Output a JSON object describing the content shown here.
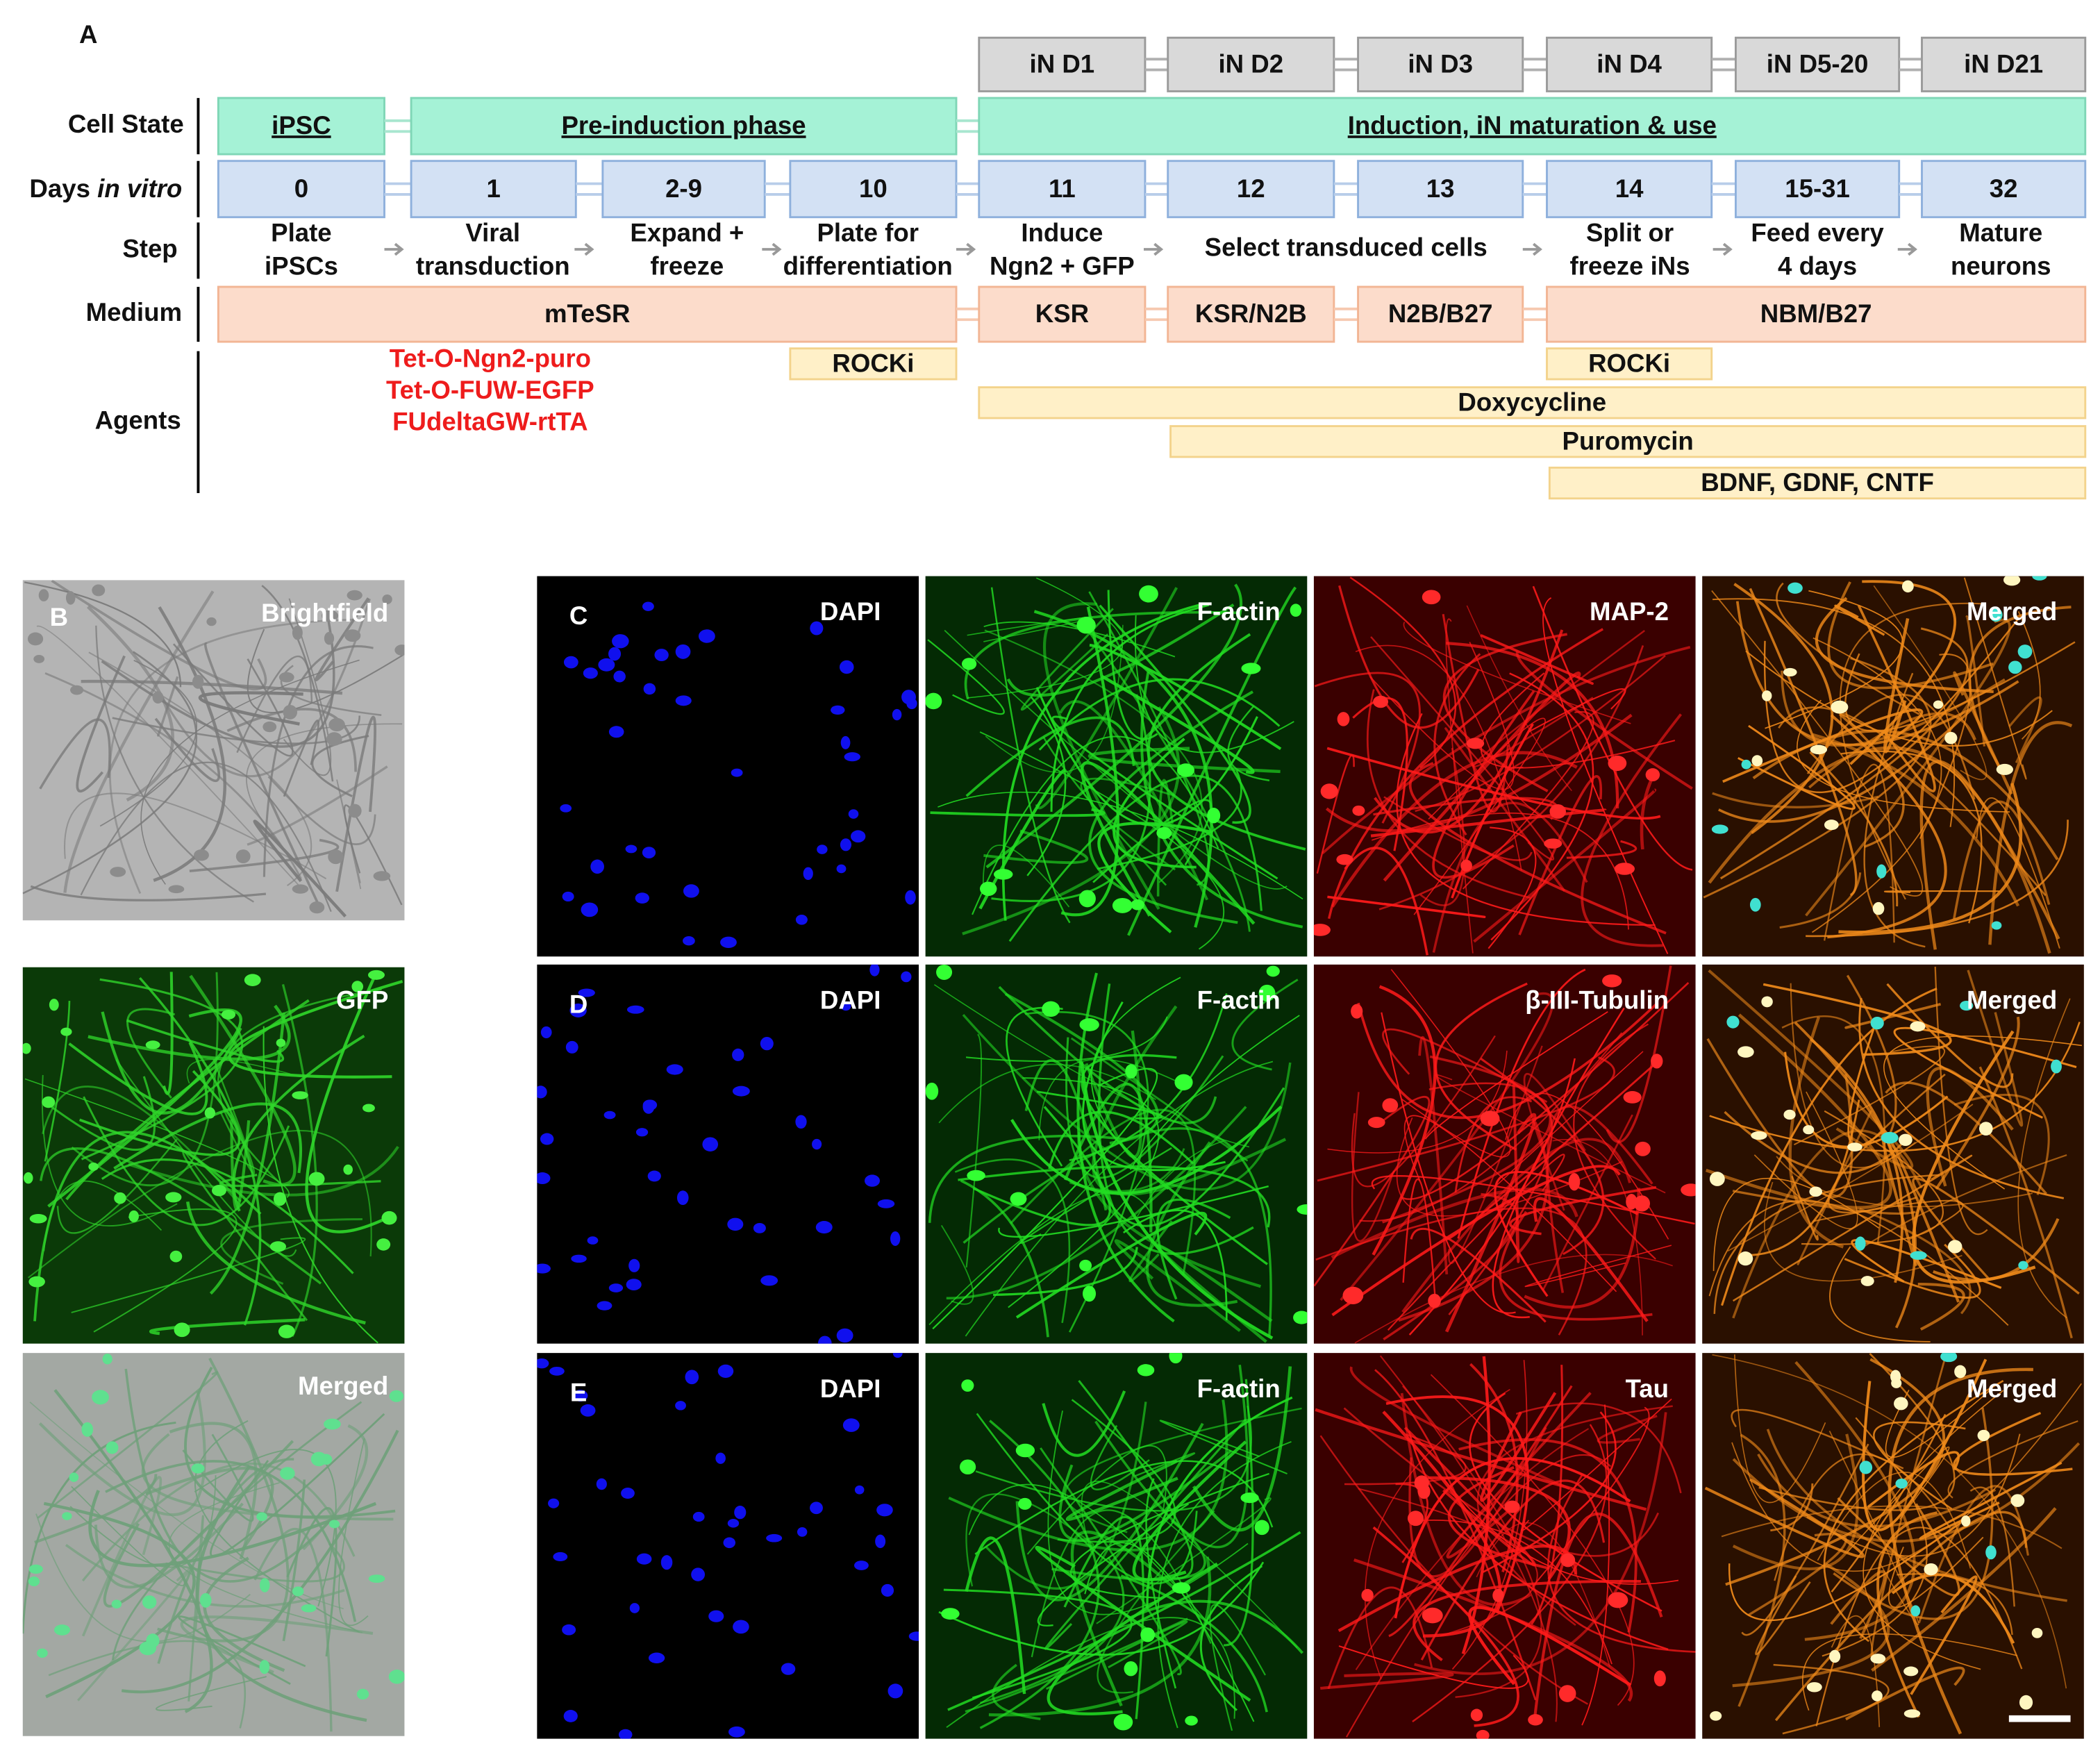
{
  "panel_a": {
    "label": "A",
    "row_labels": {
      "cell_state": "Cell State",
      "days": [
        "Days",
        "in vitro"
      ],
      "step": "Step",
      "medium": "Medium",
      "agents": "Agents"
    },
    "in_days": [
      "iN D1",
      "iN D2",
      "iN D3",
      "iN D4",
      "iN D5-20",
      "iN D21"
    ],
    "cell_states": [
      "iPSC",
      "Pre-induction phase",
      "Induction, iN maturation & use"
    ],
    "days": [
      "0",
      "1",
      "2-9",
      "10",
      "11",
      "12",
      "13",
      "14",
      "15-31",
      "32"
    ],
    "steps": [
      [
        "Plate",
        "iPSCs"
      ],
      [
        "Viral",
        "transduction"
      ],
      [
        "Expand +",
        "freeze"
      ],
      [
        "Plate for",
        "differentiation"
      ],
      [
        "Induce",
        "Ngn2 + GFP"
      ],
      [
        "Select transduced cells"
      ],
      [
        "Split or",
        "freeze iNs"
      ],
      [
        "Feed every",
        "4 days"
      ],
      [
        "Mature",
        "neurons"
      ]
    ],
    "media": [
      "mTeSR",
      "KSR",
      "KSR/N2B",
      "N2B/B27",
      "NBM/B27"
    ],
    "vectors": [
      "Tet-O-Ngn2-puro",
      "Tet-O-FUW-EGFP",
      "FUdeltaGW-rtTA"
    ],
    "agents": [
      "ROCKi",
      "ROCKi",
      "Doxycycline",
      "Puromycin",
      "BDNF, GDNF, CNTF"
    ]
  },
  "panel_b": {
    "label": "B",
    "images": [
      "Brightfield",
      "GFP",
      "Merged"
    ]
  },
  "panel_rows": [
    {
      "label": "C",
      "channels": [
        "DAPI",
        "F-actin",
        "MAP-2",
        "Merged"
      ]
    },
    {
      "label": "D",
      "channels": [
        "DAPI",
        "F-actin",
        "β-III-Tubulin",
        "Merged"
      ]
    },
    {
      "label": "E",
      "channels": [
        "DAPI",
        "F-actin",
        "Tau",
        "Merged"
      ]
    }
  ]
}
